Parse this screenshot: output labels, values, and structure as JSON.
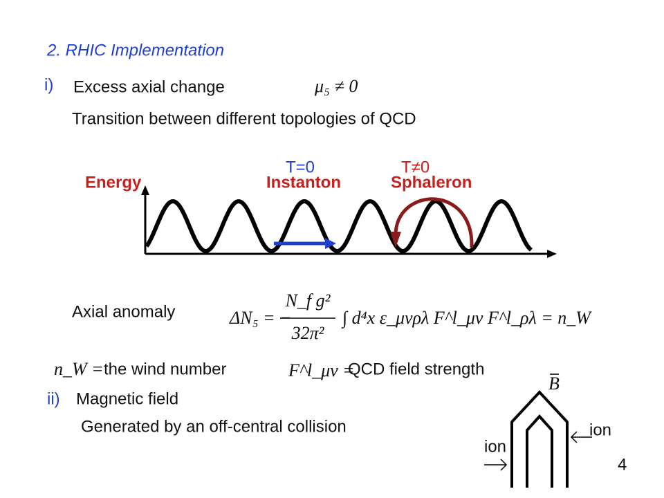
{
  "heading": "2. RHIC Implementation",
  "section1": {
    "marker": "i)",
    "title": "Excess axial change",
    "formula": "μ₅ ≠ 0",
    "line": "Transition between different topologies of QCD"
  },
  "diagram": {
    "energy": "Energy",
    "t0": "T=0",
    "instanton": "Instanton",
    "tn0": "T≠0",
    "sphaleron": "Sphaleron"
  },
  "anomaly": {
    "label": "Axial anomaly",
    "prefix": "ΔN₅ = −",
    "numerator": "N_f g²",
    "denominator": "32π²",
    "suffix": "∫ d⁴x ε_μνρλ F^l_μν F^l_ρλ = n_W"
  },
  "definitions": {
    "nw": "n_W =",
    "nw_text": "the wind number",
    "f": "F^l_μν =",
    "f_text": "QCD field strength"
  },
  "section2": {
    "marker": "ii)",
    "title": "Magnetic field",
    "line": "Generated by an off-central collision"
  },
  "magnet": {
    "b": "B",
    "ion_right": "ion",
    "ion_left": "ion"
  },
  "page_number": "4"
}
